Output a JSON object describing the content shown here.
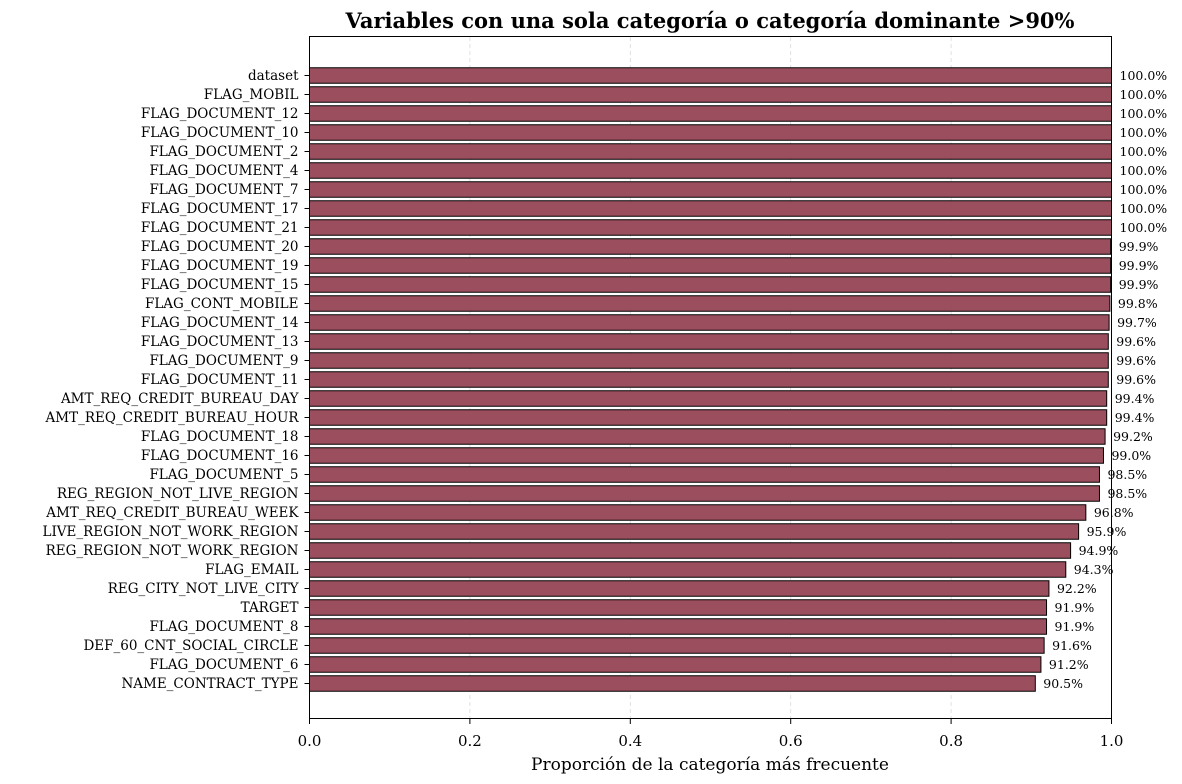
{
  "chart_data": {
    "type": "bar",
    "orientation": "horizontal",
    "title": "Variables con una sola categoría o categoría dominante >90%",
    "xlabel": "Proporción de la categoría más frecuente",
    "ylabel": "",
    "xlim": [
      0.0,
      1.0
    ],
    "xticks": [
      "0.0",
      "0.2",
      "0.4",
      "0.6",
      "0.8",
      "1.0"
    ],
    "grid": "vertical dashed",
    "bar_color": "#9b4f5e",
    "bar_edge_color": "#000000",
    "categories": [
      "dataset",
      "FLAG_MOBIL",
      "FLAG_DOCUMENT_12",
      "FLAG_DOCUMENT_10",
      "FLAG_DOCUMENT_2",
      "FLAG_DOCUMENT_4",
      "FLAG_DOCUMENT_7",
      "FLAG_DOCUMENT_17",
      "FLAG_DOCUMENT_21",
      "FLAG_DOCUMENT_20",
      "FLAG_DOCUMENT_19",
      "FLAG_DOCUMENT_15",
      "FLAG_CONT_MOBILE",
      "FLAG_DOCUMENT_14",
      "FLAG_DOCUMENT_13",
      "FLAG_DOCUMENT_9",
      "FLAG_DOCUMENT_11",
      "AMT_REQ_CREDIT_BUREAU_DAY",
      "AMT_REQ_CREDIT_BUREAU_HOUR",
      "FLAG_DOCUMENT_18",
      "FLAG_DOCUMENT_16",
      "FLAG_DOCUMENT_5",
      "REG_REGION_NOT_LIVE_REGION",
      "AMT_REQ_CREDIT_BUREAU_WEEK",
      "LIVE_REGION_NOT_WORK_REGION",
      "REG_REGION_NOT_WORK_REGION",
      "FLAG_EMAIL",
      "REG_CITY_NOT_LIVE_CITY",
      "TARGET",
      "FLAG_DOCUMENT_8",
      "DEF_60_CNT_SOCIAL_CIRCLE",
      "FLAG_DOCUMENT_6",
      "NAME_CONTRACT_TYPE"
    ],
    "values": [
      1.0,
      1.0,
      1.0,
      1.0,
      1.0,
      1.0,
      1.0,
      1.0,
      1.0,
      0.999,
      0.999,
      0.999,
      0.998,
      0.997,
      0.996,
      0.996,
      0.996,
      0.994,
      0.994,
      0.992,
      0.99,
      0.985,
      0.985,
      0.968,
      0.959,
      0.949,
      0.943,
      0.922,
      0.919,
      0.919,
      0.916,
      0.912,
      0.905
    ],
    "value_labels": [
      "100.0%",
      "100.0%",
      "100.0%",
      "100.0%",
      "100.0%",
      "100.0%",
      "100.0%",
      "100.0%",
      "100.0%",
      "99.9%",
      "99.9%",
      "99.9%",
      "99.8%",
      "99.7%",
      "99.6%",
      "99.6%",
      "99.6%",
      "99.4%",
      "99.4%",
      "99.2%",
      "99.0%",
      "98.5%",
      "98.5%",
      "96.8%",
      "95.9%",
      "94.9%",
      "94.3%",
      "92.2%",
      "91.9%",
      "91.9%",
      "91.6%",
      "91.2%",
      "90.5%"
    ]
  }
}
